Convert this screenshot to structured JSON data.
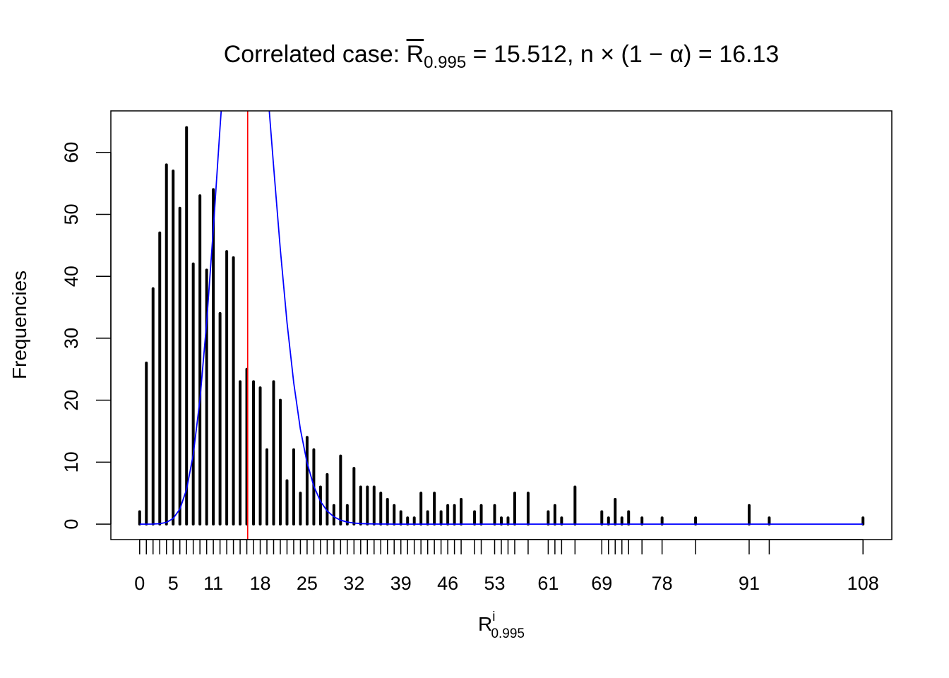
{
  "chart_data": {
    "type": "bar",
    "title": {
      "prefix": "Correlated case: ",
      "symbol": "R",
      "subscript": "0.995",
      "suffix": " = 15.512, n × (1 − α) = 16.13"
    },
    "xlabel": {
      "base": "R",
      "superscript": "i",
      "subscript": "0.995"
    },
    "ylabel": "Frequencies",
    "x": [
      0,
      1,
      2,
      3,
      4,
      5,
      6,
      7,
      8,
      9,
      10,
      11,
      12,
      13,
      14,
      15,
      16,
      17,
      18,
      19,
      20,
      21,
      22,
      23,
      24,
      25,
      26,
      27,
      28,
      29,
      30,
      31,
      32,
      33,
      34,
      35,
      36,
      37,
      38,
      39,
      40,
      41,
      42,
      43,
      44,
      45,
      46,
      47,
      48,
      50,
      51,
      53,
      54,
      55,
      56,
      58,
      61,
      62,
      63,
      65,
      69,
      70,
      71,
      72,
      73,
      75,
      78,
      83,
      91,
      94,
      108
    ],
    "values": [
      2,
      26,
      38,
      47,
      58,
      57,
      51,
      64,
      42,
      53,
      41,
      54,
      34,
      44,
      43,
      23,
      25,
      23,
      22,
      12,
      23,
      20,
      7,
      12,
      5,
      14,
      12,
      6,
      8,
      3,
      11,
      3,
      9,
      6,
      6,
      6,
      5,
      4,
      3,
      2,
      1,
      1,
      5,
      2,
      5,
      2,
      3,
      3,
      4,
      2,
      3,
      3,
      1,
      1,
      5,
      5,
      2,
      3,
      1,
      6,
      2,
      1,
      4,
      1,
      2,
      1,
      1,
      1,
      3,
      1,
      1
    ],
    "x_tick_labels": [
      "0",
      "5",
      "11",
      "18",
      "25",
      "32",
      "39",
      "46",
      "53",
      "61",
      "69",
      "78",
      "91",
      "108"
    ],
    "y_ticks": [
      "0",
      "10",
      "20",
      "30",
      "40",
      "50",
      "60"
    ],
    "xlim": [
      -4.3,
      112.3
    ],
    "ylim": [
      -2.5,
      66.7
    ],
    "overlay_curve": {
      "type": "poisson-density-scaled",
      "lambda": 16.13,
      "total": 1000,
      "color": "#0000ff"
    },
    "vline": {
      "x": 16.13,
      "color": "#ff0000"
    },
    "bar_color": "#000000",
    "grid": false
  }
}
